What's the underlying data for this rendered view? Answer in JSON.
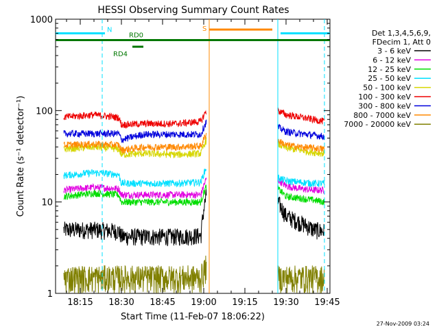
{
  "chart_data": {
    "type": "line",
    "title": "HESSI Observing Summary Count Rates",
    "xlabel": "Start Time (11-Feb-07 18:06:22)",
    "ylabel": "Count Rate (s⁻¹ detector⁻¹)",
    "yscale": "log",
    "ylim": [
      1,
      1000
    ],
    "xlim": [
      "18:06",
      "19:46"
    ],
    "x_ticks": [
      "18:15",
      "18:30",
      "18:45",
      "19:00",
      "19:15",
      "19:30",
      "19:45"
    ],
    "y_ticks": [
      "1",
      "10",
      "100",
      "1000"
    ],
    "grid": false,
    "legend_position": "right",
    "legend_title_lines": [
      "Det 1,3,4,5,6,9,",
      "FDecim 1, Att 0"
    ],
    "data_gap": {
      "start": "19:01",
      "end": "19:26"
    },
    "series": [
      {
        "name": "3 - 6 keV",
        "color": "#000000",
        "x": [
          "18:09",
          "18:20",
          "18:29",
          "18:30",
          "18:38",
          "18:50",
          "18:59",
          "19:01",
          "19:27",
          "19:30",
          "19:35",
          "19:40",
          "19:44"
        ],
        "values": [
          5.0,
          5.0,
          4.8,
          4.2,
          4.2,
          4.2,
          4.3,
          12,
          10,
          7,
          6,
          5,
          4.8
        ]
      },
      {
        "name": "6 - 12 keV",
        "color": "#e100e1",
        "x": [
          "18:09",
          "18:20",
          "18:29",
          "18:30",
          "18:38",
          "18:50",
          "18:59",
          "19:01",
          "19:27",
          "19:30",
          "19:35",
          "19:40",
          "19:44"
        ],
        "values": [
          13.5,
          14.5,
          14,
          12,
          12,
          12,
          12,
          18,
          17.5,
          15,
          14,
          13.5,
          13.5
        ]
      },
      {
        "name": "12 - 25 keV",
        "color": "#00dd00",
        "x": [
          "18:09",
          "18:20",
          "18:29",
          "18:30",
          "18:38",
          "18:50",
          "18:59",
          "19:01",
          "19:27",
          "19:30",
          "19:35",
          "19:40",
          "19:44"
        ],
        "values": [
          11.5,
          12.5,
          12,
          10,
          10,
          10,
          10,
          15,
          14,
          11.5,
          11,
          10.5,
          10
        ]
      },
      {
        "name": "25 - 50 keV",
        "color": "#00e0ff",
        "x": [
          "18:09",
          "18:20",
          "18:29",
          "18:30",
          "18:38",
          "18:50",
          "18:59",
          "19:01",
          "19:27",
          "19:30",
          "19:35",
          "19:40",
          "19:44"
        ],
        "values": [
          19.5,
          21,
          20,
          16,
          16,
          16,
          16.5,
          24,
          18.5,
          17,
          16.5,
          16,
          16
        ]
      },
      {
        "name": "50 - 100 keV",
        "color": "#d6d600",
        "x": [
          "18:09",
          "18:20",
          "18:29",
          "18:30",
          "18:38",
          "18:50",
          "18:59",
          "19:01",
          "19:27",
          "19:30",
          "19:35",
          "19:40",
          "19:44"
        ],
        "values": [
          38,
          40,
          38,
          33,
          34,
          33,
          34,
          48,
          43,
          39,
          37,
          35,
          34
        ]
      },
      {
        "name": "100 - 300 keV",
        "color": "#ee0000",
        "x": [
          "18:09",
          "18:20",
          "18:29",
          "18:30",
          "18:38",
          "18:50",
          "18:59",
          "19:01",
          "19:27",
          "19:30",
          "19:35",
          "19:40",
          "19:44"
        ],
        "values": [
          85,
          90,
          84,
          70,
          72,
          72,
          76,
          100,
          100,
          90,
          85,
          80,
          76
        ]
      },
      {
        "name": "300 - 800 keV",
        "color": "#0000dd",
        "x": [
          "18:09",
          "18:20",
          "18:29",
          "18:30",
          "18:38",
          "18:50",
          "18:59",
          "19:01",
          "19:27",
          "19:30",
          "19:35",
          "19:40",
          "19:44"
        ],
        "values": [
          56,
          56,
          56,
          48,
          55,
          55,
          55,
          76,
          66,
          59,
          56,
          54,
          52
        ]
      },
      {
        "name": "800 - 7000 keV",
        "color": "#ff8800",
        "x": [
          "18:09",
          "18:20",
          "18:29",
          "18:30",
          "18:38",
          "18:50",
          "18:59",
          "19:01",
          "19:27",
          "19:30",
          "19:35",
          "19:40",
          "19:44"
        ],
        "values": [
          42,
          43,
          42,
          37,
          40,
          40,
          41,
          56,
          47,
          42,
          40,
          39,
          38
        ]
      },
      {
        "name": "7000 - 20000 keV",
        "color": "#808000",
        "x": [
          "18:09",
          "18:20",
          "18:29",
          "18:30",
          "18:38",
          "18:50",
          "18:59",
          "19:01",
          "19:27",
          "19:30",
          "19:35",
          "19:40",
          "19:44"
        ],
        "values": [
          1.5,
          1.5,
          1.5,
          1.5,
          1.5,
          1.5,
          1.5,
          2,
          1.5,
          1.5,
          1.5,
          1.5,
          1.5
        ]
      }
    ],
    "annotations": [
      {
        "label": "N",
        "color": "#00e0ff",
        "x_start": "18:06",
        "x_end": "18:24",
        "value": 700
      },
      {
        "label": "",
        "color": "#00e0ff",
        "x_start": "19:28",
        "x_end": "19:46",
        "value": 700
      },
      {
        "label": "S",
        "color": "#ff8800",
        "x_start": "19:02",
        "x_end": "19:25",
        "value": 770
      },
      {
        "label": "RD0",
        "color": "#007700",
        "x_start": "18:06",
        "x_end": "19:46",
        "value": 590
      },
      {
        "label": "RD4",
        "color": "#007700",
        "x_start": "18:34",
        "x_end": "18:38",
        "value": 500
      }
    ],
    "vertical_markers": [
      {
        "x": "18:23",
        "color": "#00e0ff",
        "style": "dashed"
      },
      {
        "x": "19:02",
        "color": "#ff8800",
        "style": "solid"
      },
      {
        "x": "19:27",
        "color": "#00e0ff",
        "style": "solid"
      },
      {
        "x": "19:44",
        "color": "#00e0ff",
        "style": "dashed"
      }
    ],
    "footer_timestamp": "27-Nov-2009 03:24"
  }
}
